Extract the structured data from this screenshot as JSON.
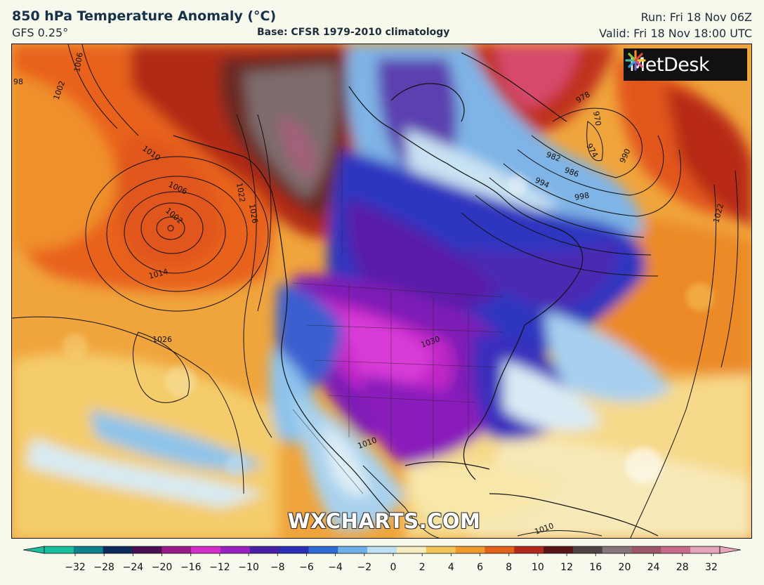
{
  "header": {
    "title": "850 hPa Temperature Anomaly (°C)",
    "model": "GFS 0.25°",
    "base": "Base: CFSR 1979-2010 climatology",
    "run": "Run: Fri 18 Nov 06Z",
    "valid": "Valid: Fri 18 Nov 18:00 UTC"
  },
  "logo": {
    "text": "MetDesk",
    "icon": "metdesk-flower-icon"
  },
  "watermark": "WXCHARTS.COM",
  "isobars": {
    "unit": "hPa",
    "labels": [
      "98",
      "1006",
      "1002",
      "1010",
      "1006",
      "1002",
      "1014",
      "1022",
      "1026",
      "1026",
      "978",
      "970",
      "974",
      "982",
      "986",
      "994",
      "998",
      "990",
      "1022",
      "1010",
      "1010",
      "1030"
    ]
  },
  "legend": {
    "ticks": [
      "−32",
      "−28",
      "−24",
      "−20",
      "−16",
      "−12",
      "−10",
      "−8",
      "−6",
      "−4",
      "−2",
      "0",
      "2",
      "4",
      "6",
      "8",
      "10",
      "12",
      "16",
      "20",
      "24",
      "28",
      "32"
    ],
    "colors": [
      "#1bbfa0",
      "#0f7f8a",
      "#0e2a5c",
      "#4a0f52",
      "#9a1a8a",
      "#d42dcc",
      "#9a20c0",
      "#4a1fa8",
      "#2b2fb8",
      "#2e6ad6",
      "#6fb0ea",
      "#bfdff2",
      "#f5edbf",
      "#f4c65a",
      "#ef9a2a",
      "#e2621a",
      "#b42a1a",
      "#5a1416",
      "#4f4242",
      "#86757b",
      "#9e5469",
      "#c86b88",
      "#e5a6ba"
    ]
  }
}
